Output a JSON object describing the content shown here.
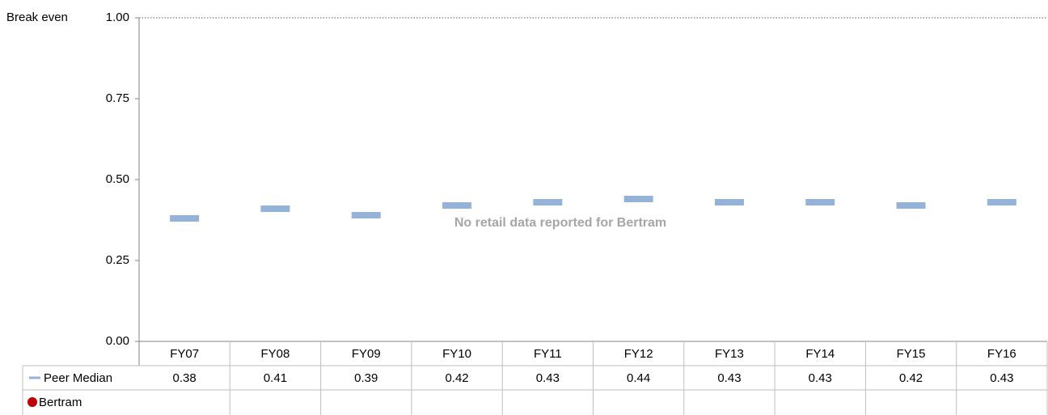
{
  "chart_data": {
    "type": "dash",
    "categories": [
      "FY07",
      "FY08",
      "FY09",
      "FY10",
      "FY11",
      "FY12",
      "FY13",
      "FY14",
      "FY15",
      "FY16"
    ],
    "series": [
      {
        "name": "Peer Median",
        "color": "#95b3d7",
        "values": [
          0.38,
          0.41,
          0.39,
          0.42,
          0.43,
          0.44,
          0.43,
          0.43,
          0.42,
          0.43
        ]
      },
      {
        "name": "Bertram",
        "color": "#c00000",
        "values": [
          null,
          null,
          null,
          null,
          null,
          null,
          null,
          null,
          null,
          null
        ]
      }
    ],
    "ylim": [
      0,
      1
    ],
    "yticks": [
      {
        "value": 0,
        "label": "0.00"
      },
      0.25,
      {
        "value": 0.5,
        "label": "0.50"
      },
      0.75,
      {
        "value": 1,
        "label": "1.00"
      }
    ],
    "grid": false,
    "reference_line": {
      "value": 1,
      "label": "Break even"
    },
    "annotation": "No retail data reported for Bertram",
    "data_table": true
  }
}
